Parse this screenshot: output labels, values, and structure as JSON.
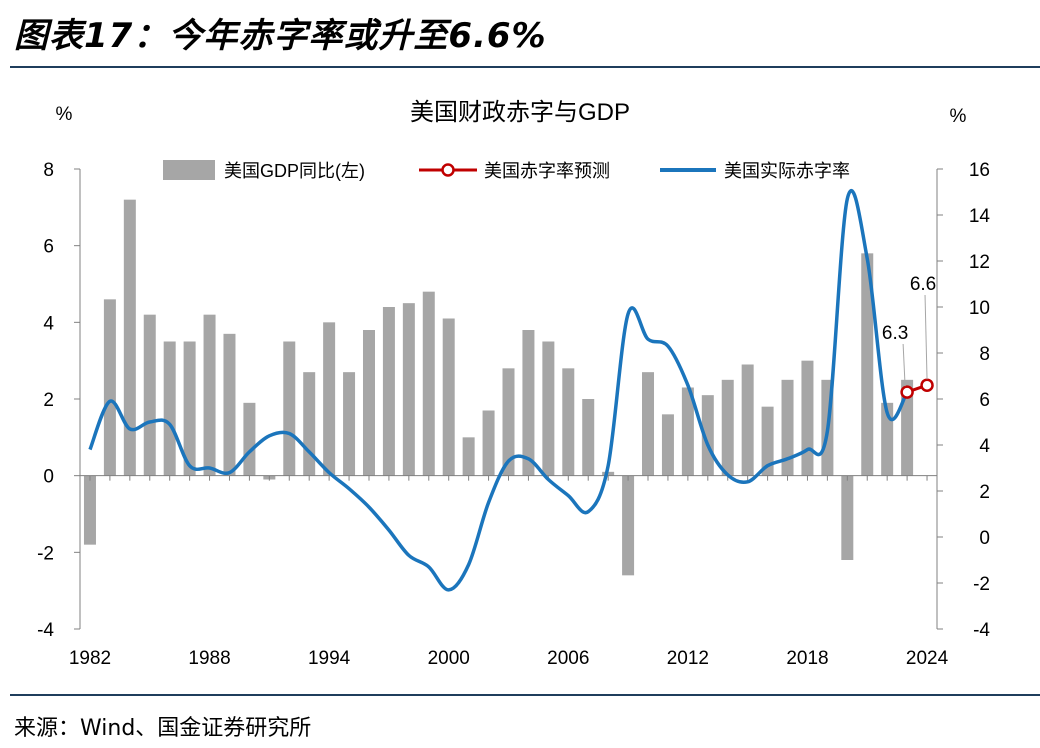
{
  "figure_title": "图表17：今年赤字率或升至6.6%",
  "source": "来源：Wind、国金证券研究所",
  "chart_data": {
    "type": "bar+line",
    "title": "美国财政赤字与GDP",
    "left_axis_unit": "%",
    "right_axis_unit": "%",
    "left_ylim": [
      -4,
      8
    ],
    "left_ticks": [
      "-4",
      "-2",
      "0",
      "2",
      "4",
      "6",
      "8"
    ],
    "right_ylim": [
      -4,
      16
    ],
    "right_ticks": [
      "-4",
      "-2",
      "0",
      "2",
      "4",
      "6",
      "8",
      "10",
      "12",
      "14",
      "16"
    ],
    "x_tick_labels": [
      "1982",
      "1988",
      "1994",
      "2000",
      "2006",
      "2012",
      "2018",
      "2024"
    ],
    "legend": {
      "gdp": "美国GDP同比(左)",
      "forecast": "美国赤字率预测",
      "actual": "美国实际赤字率"
    },
    "colors": {
      "bar": "#a6a6a6",
      "actual": "#1b75bc",
      "forecast": "#c00000"
    },
    "gdp_growth": {
      "x": [
        1982,
        1983,
        1984,
        1985,
        1986,
        1987,
        1988,
        1989,
        1990,
        1991,
        1992,
        1993,
        1994,
        1995,
        1996,
        1997,
        1998,
        1999,
        2000,
        2001,
        2002,
        2003,
        2004,
        2005,
        2006,
        2007,
        2008,
        2009,
        2010,
        2011,
        2012,
        2013,
        2014,
        2015,
        2016,
        2017,
        2018,
        2019,
        2020,
        2021,
        2022,
        2023
      ],
      "values": [
        -1.8,
        4.6,
        7.2,
        4.2,
        3.5,
        3.5,
        4.2,
        3.7,
        1.9,
        -0.1,
        3.5,
        2.7,
        4.0,
        2.7,
        3.8,
        4.4,
        4.5,
        4.8,
        4.1,
        1.0,
        1.7,
        2.8,
        3.8,
        3.5,
        2.8,
        2.0,
        0.1,
        -2.6,
        2.7,
        1.6,
        2.3,
        2.1,
        2.5,
        2.9,
        1.8,
        2.5,
        3.0,
        2.5,
        -2.2,
        5.8,
        1.9,
        2.5
      ]
    },
    "actual_deficit": {
      "x": [
        1982,
        1983,
        1984,
        1985,
        1986,
        1987,
        1988,
        1989,
        1990,
        1991,
        1992,
        1993,
        1994,
        1995,
        1996,
        1997,
        1998,
        1999,
        2000,
        2001,
        2002,
        2003,
        2004,
        2005,
        2006,
        2007,
        2008,
        2009,
        2010,
        2011,
        2012,
        2013,
        2014,
        2015,
        2016,
        2017,
        2018,
        2019,
        2020,
        2021,
        2022,
        2023
      ],
      "values": [
        3.8,
        5.9,
        4.7,
        5.0,
        4.9,
        3.1,
        3.0,
        2.8,
        3.7,
        4.4,
        4.5,
        3.7,
        2.8,
        2.1,
        1.3,
        0.3,
        -0.8,
        -1.3,
        -2.3,
        -1.2,
        1.5,
        3.3,
        3.4,
        2.5,
        1.8,
        1.1,
        3.1,
        9.7,
        8.6,
        8.3,
        6.6,
        4.0,
        2.7,
        2.4,
        3.1,
        3.4,
        3.8,
        4.6,
        14.7,
        12.1,
        5.4,
        6.3
      ]
    },
    "forecast_deficit": {
      "x": [
        2023,
        2024
      ],
      "values": [
        6.3,
        6.6
      ],
      "labels": [
        "6.3",
        "6.6"
      ]
    }
  }
}
